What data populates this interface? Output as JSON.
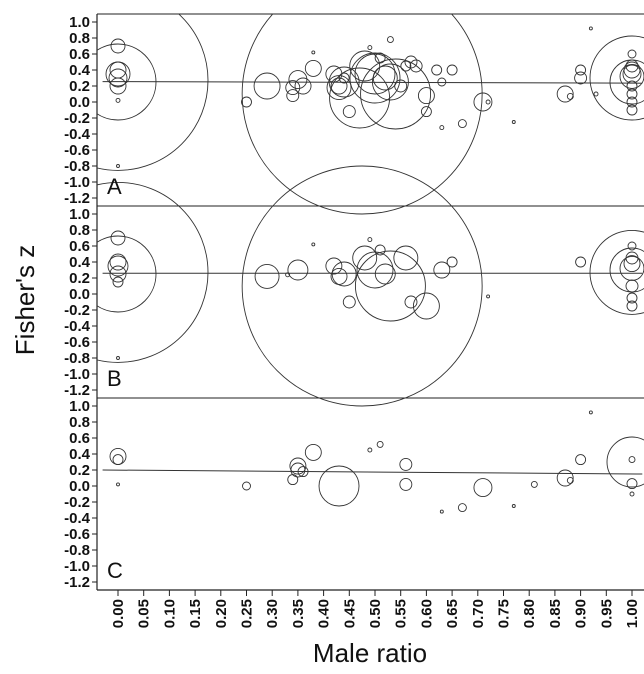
{
  "chart_data": {
    "type": "scatter",
    "subtype": "bubble",
    "xlabel": "Male ratio",
    "ylabel": "Fisher's z",
    "x_ticks": [
      "0.00",
      "0.05",
      "0.10",
      "0.15",
      "0.20",
      "0.25",
      "0.30",
      "0.35",
      "0.40",
      "0.45",
      "0.50",
      "0.55",
      "0.60",
      "0.65",
      "0.70",
      "0.75",
      "0.80",
      "0.85",
      "0.90",
      "0.95",
      "1.00"
    ],
    "y_ticks": [
      "1.0",
      "0.8",
      "0.6",
      "0.4",
      "0.2",
      "0.0",
      "-0.2",
      "-0.4",
      "-0.6",
      "-0.8",
      "-1.0",
      "-1.2"
    ],
    "xlim": [
      -0.03,
      1.02
    ],
    "ylim": [
      -1.3,
      1.1
    ],
    "panels": [
      {
        "label": "A",
        "trend_line": [
          [
            -0.03,
            0.255
          ],
          [
            1.02,
            0.235
          ]
        ],
        "points": [
          {
            "x": 0.0,
            "y": 0.27,
            "r": 90
          },
          {
            "x": 0.0,
            "y": 0.25,
            "r": 38
          },
          {
            "x": 0.0,
            "y": 0.35,
            "r": 12
          },
          {
            "x": 0.0,
            "y": 0.4,
            "r": 8
          },
          {
            "x": 0.0,
            "y": 0.3,
            "r": 9
          },
          {
            "x": 0.0,
            "y": 0.7,
            "r": 7
          },
          {
            "x": 0.0,
            "y": 0.2,
            "r": 8
          },
          {
            "x": 0.0,
            "y": 0.02,
            "r": 2
          },
          {
            "x": 0.0,
            "y": -0.8,
            "r": 1.5
          },
          {
            "x": 0.25,
            "y": 0.0,
            "r": 5
          },
          {
            "x": 0.29,
            "y": 0.2,
            "r": 13
          },
          {
            "x": 0.34,
            "y": 0.18,
            "r": 7
          },
          {
            "x": 0.34,
            "y": 0.08,
            "r": 6
          },
          {
            "x": 0.35,
            "y": 0.28,
            "r": 9
          },
          {
            "x": 0.36,
            "y": 0.2,
            "r": 8
          },
          {
            "x": 0.38,
            "y": 0.42,
            "r": 8
          },
          {
            "x": 0.38,
            "y": 0.62,
            "r": 1.5
          },
          {
            "x": 0.42,
            "y": 0.35,
            "r": 8
          },
          {
            "x": 0.43,
            "y": 0.2,
            "r": 8
          },
          {
            "x": 0.43,
            "y": 0.18,
            "r": 12
          },
          {
            "x": 0.44,
            "y": 0.25,
            "r": 15
          },
          {
            "x": 0.44,
            "y": 0.3,
            "r": 5
          },
          {
            "x": 0.45,
            "y": -0.12,
            "r": 6
          },
          {
            "x": 0.47,
            "y": 0.05,
            "r": 30
          },
          {
            "x": 0.475,
            "y": 0.1,
            "r": 120
          },
          {
            "x": 0.48,
            "y": 0.45,
            "r": 15
          },
          {
            "x": 0.49,
            "y": 0.68,
            "r": 2
          },
          {
            "x": 0.5,
            "y": 0.35,
            "r": 20
          },
          {
            "x": 0.5,
            "y": 0.3,
            "r": 25
          },
          {
            "x": 0.51,
            "y": 0.55,
            "r": 5
          },
          {
            "x": 0.52,
            "y": 0.3,
            "r": 12
          },
          {
            "x": 0.53,
            "y": 0.25,
            "r": 18
          },
          {
            "x": 0.53,
            "y": 0.78,
            "r": 3
          },
          {
            "x": 0.54,
            "y": 0.1,
            "r": 35
          },
          {
            "x": 0.55,
            "y": 0.2,
            "r": 6
          },
          {
            "x": 0.56,
            "y": 0.45,
            "r": 5
          },
          {
            "x": 0.57,
            "y": 0.5,
            "r": 6
          },
          {
            "x": 0.58,
            "y": 0.45,
            "r": 6
          },
          {
            "x": 0.6,
            "y": 0.08,
            "r": 8
          },
          {
            "x": 0.6,
            "y": -0.12,
            "r": 5
          },
          {
            "x": 0.62,
            "y": 0.4,
            "r": 5
          },
          {
            "x": 0.63,
            "y": 0.25,
            "r": 4
          },
          {
            "x": 0.63,
            "y": -0.32,
            "r": 2
          },
          {
            "x": 0.65,
            "y": 0.4,
            "r": 5
          },
          {
            "x": 0.67,
            "y": -0.27,
            "r": 4
          },
          {
            "x": 0.71,
            "y": 0.0,
            "r": 9
          },
          {
            "x": 0.72,
            "y": 0.0,
            "r": 2
          },
          {
            "x": 0.77,
            "y": -0.25,
            "r": 1.5
          },
          {
            "x": 0.87,
            "y": 0.1,
            "r": 8
          },
          {
            "x": 0.88,
            "y": 0.07,
            "r": 3
          },
          {
            "x": 0.9,
            "y": 0.3,
            "r": 6
          },
          {
            "x": 0.9,
            "y": 0.4,
            "r": 5
          },
          {
            "x": 0.92,
            "y": 0.92,
            "r": 1.5
          },
          {
            "x": 0.93,
            "y": 0.1,
            "r": 2
          },
          {
            "x": 1.0,
            "y": 0.3,
            "r": 42
          },
          {
            "x": 1.0,
            "y": 0.25,
            "r": 22
          },
          {
            "x": 1.0,
            "y": 0.32,
            "r": 12
          },
          {
            "x": 1.0,
            "y": 0.4,
            "r": 8
          },
          {
            "x": 1.0,
            "y": 0.35,
            "r": 9
          },
          {
            "x": 1.0,
            "y": 0.45,
            "r": 6
          },
          {
            "x": 1.0,
            "y": 0.6,
            "r": 4
          },
          {
            "x": 1.0,
            "y": 0.2,
            "r": 5
          },
          {
            "x": 1.0,
            "y": 0.1,
            "r": 5
          },
          {
            "x": 1.0,
            "y": 0.0,
            "r": 5
          },
          {
            "x": 1.0,
            "y": -0.1,
            "r": 5
          }
        ]
      },
      {
        "label": "B",
        "trend_line": [
          [
            -0.03,
            0.26
          ],
          [
            1.02,
            0.26
          ]
        ],
        "points": [
          {
            "x": 0.0,
            "y": 0.27,
            "r": 90
          },
          {
            "x": 0.0,
            "y": 0.25,
            "r": 38
          },
          {
            "x": 0.0,
            "y": 0.35,
            "r": 10
          },
          {
            "x": 0.0,
            "y": 0.4,
            "r": 8
          },
          {
            "x": 0.0,
            "y": 0.25,
            "r": 8
          },
          {
            "x": 0.0,
            "y": 0.7,
            "r": 7
          },
          {
            "x": 0.0,
            "y": 0.15,
            "r": 5
          },
          {
            "x": 0.0,
            "y": -0.8,
            "r": 1.5
          },
          {
            "x": 0.29,
            "y": 0.22,
            "r": 12
          },
          {
            "x": 0.33,
            "y": 0.24,
            "r": 2
          },
          {
            "x": 0.35,
            "y": 0.3,
            "r": 10
          },
          {
            "x": 0.38,
            "y": 0.62,
            "r": 1.5
          },
          {
            "x": 0.42,
            "y": 0.35,
            "r": 8
          },
          {
            "x": 0.43,
            "y": 0.22,
            "r": 8
          },
          {
            "x": 0.44,
            "y": 0.25,
            "r": 12
          },
          {
            "x": 0.45,
            "y": -0.1,
            "r": 6
          },
          {
            "x": 0.475,
            "y": 0.1,
            "r": 120
          },
          {
            "x": 0.48,
            "y": 0.45,
            "r": 12
          },
          {
            "x": 0.49,
            "y": 0.68,
            "r": 2
          },
          {
            "x": 0.5,
            "y": 0.3,
            "r": 18
          },
          {
            "x": 0.51,
            "y": 0.55,
            "r": 5
          },
          {
            "x": 0.52,
            "y": 0.25,
            "r": 10
          },
          {
            "x": 0.53,
            "y": 0.1,
            "r": 35
          },
          {
            "x": 0.56,
            "y": 0.45,
            "r": 12
          },
          {
            "x": 0.57,
            "y": -0.1,
            "r": 6
          },
          {
            "x": 0.6,
            "y": -0.15,
            "r": 13
          },
          {
            "x": 0.63,
            "y": 0.3,
            "r": 8
          },
          {
            "x": 0.65,
            "y": 0.4,
            "r": 5
          },
          {
            "x": 0.72,
            "y": -0.03,
            "r": 1.5
          },
          {
            "x": 0.9,
            "y": 0.4,
            "r": 5
          },
          {
            "x": 1.0,
            "y": 0.27,
            "r": 42
          },
          {
            "x": 1.0,
            "y": 0.3,
            "r": 22
          },
          {
            "x": 1.0,
            "y": 0.32,
            "r": 12
          },
          {
            "x": 1.0,
            "y": 0.38,
            "r": 8
          },
          {
            "x": 1.0,
            "y": 0.45,
            "r": 6
          },
          {
            "x": 1.0,
            "y": 0.6,
            "r": 4
          },
          {
            "x": 1.0,
            "y": 0.1,
            "r": 6
          },
          {
            "x": 1.0,
            "y": -0.05,
            "r": 5
          },
          {
            "x": 1.0,
            "y": -0.15,
            "r": 5
          }
        ]
      },
      {
        "label": "C",
        "trend_line": [
          [
            -0.03,
            0.2
          ],
          [
            1.02,
            0.15
          ]
        ],
        "points": [
          {
            "x": 0.0,
            "y": 0.37,
            "r": 8
          },
          {
            "x": 0.0,
            "y": 0.33,
            "r": 5
          },
          {
            "x": 0.0,
            "y": 0.02,
            "r": 1.5
          },
          {
            "x": 0.25,
            "y": 0.0,
            "r": 4
          },
          {
            "x": 0.34,
            "y": 0.08,
            "r": 5
          },
          {
            "x": 0.35,
            "y": 0.25,
            "r": 8
          },
          {
            "x": 0.35,
            "y": 0.2,
            "r": 7
          },
          {
            "x": 0.36,
            "y": 0.18,
            "r": 5
          },
          {
            "x": 0.38,
            "y": 0.42,
            "r": 8
          },
          {
            "x": 0.43,
            "y": 0.0,
            "r": 20
          },
          {
            "x": 0.49,
            "y": 0.45,
            "r": 2
          },
          {
            "x": 0.51,
            "y": 0.52,
            "r": 3
          },
          {
            "x": 0.56,
            "y": 0.27,
            "r": 6
          },
          {
            "x": 0.56,
            "y": 0.02,
            "r": 6
          },
          {
            "x": 0.63,
            "y": -0.32,
            "r": 1.5
          },
          {
            "x": 0.67,
            "y": -0.27,
            "r": 4
          },
          {
            "x": 0.71,
            "y": -0.02,
            "r": 9
          },
          {
            "x": 0.77,
            "y": -0.25,
            "r": 1.5
          },
          {
            "x": 0.81,
            "y": 0.02,
            "r": 3
          },
          {
            "x": 0.87,
            "y": 0.1,
            "r": 8
          },
          {
            "x": 0.88,
            "y": 0.07,
            "r": 3
          },
          {
            "x": 0.9,
            "y": 0.33,
            "r": 5
          },
          {
            "x": 0.92,
            "y": 0.92,
            "r": 1.5
          },
          {
            "x": 1.0,
            "y": 0.3,
            "r": 25
          },
          {
            "x": 1.0,
            "y": 0.33,
            "r": 3
          },
          {
            "x": 1.0,
            "y": 0.03,
            "r": 5
          },
          {
            "x": 1.0,
            "y": -0.1,
            "r": 2
          }
        ]
      }
    ],
    "grid": false,
    "legend": "none"
  }
}
